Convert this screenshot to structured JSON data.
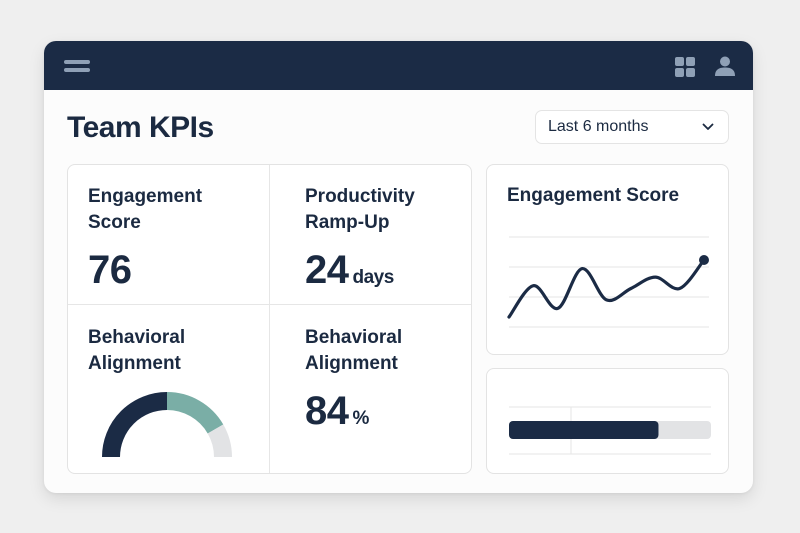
{
  "topbar": {
    "menu_icon": "hamburger-icon",
    "apps_icon": "grid-icon",
    "profile_icon": "user-icon",
    "color": "#1b2b45",
    "icon_color": "#8fa0b6"
  },
  "header": {
    "title": "Team KPIs",
    "range_select": {
      "value": "Last 6 months",
      "icon": "chevron-down-icon"
    }
  },
  "kpis": {
    "engagement": {
      "label_line1": "Engagement",
      "label_line2": "Score",
      "value": "76"
    },
    "ramp_up": {
      "label_line1": "Productivity",
      "label_line2": "Ramp-Up",
      "value": "24",
      "unit": "days"
    },
    "alignment_gauge": {
      "label_line1": "Behavioral",
      "label_line2": "Alignment",
      "segments": [
        {
          "name": "primary",
          "fraction": 0.5,
          "color": "#1b2b45"
        },
        {
          "name": "secondary",
          "fraction": 0.333,
          "color": "#7aaea6"
        },
        {
          "name": "remaining",
          "fraction": 0.167,
          "color": "#e2e3e5"
        }
      ]
    },
    "alignment_pct": {
      "label_line1": "Behavioral",
      "label_line2": "Alignment",
      "value": "84",
      "unit": "%"
    }
  },
  "engagement_chart": {
    "title": "Engagement Score",
    "line_color": "#1b2b45",
    "values": [
      0.0,
      0.55,
      0.15,
      0.85,
      0.3,
      0.5,
      0.7,
      0.5,
      1.0
    ],
    "gridlines": 4
  },
  "progress": {
    "fraction": 0.74,
    "fill_color": "#1b2b45",
    "track_color": "#e2e3e5"
  }
}
